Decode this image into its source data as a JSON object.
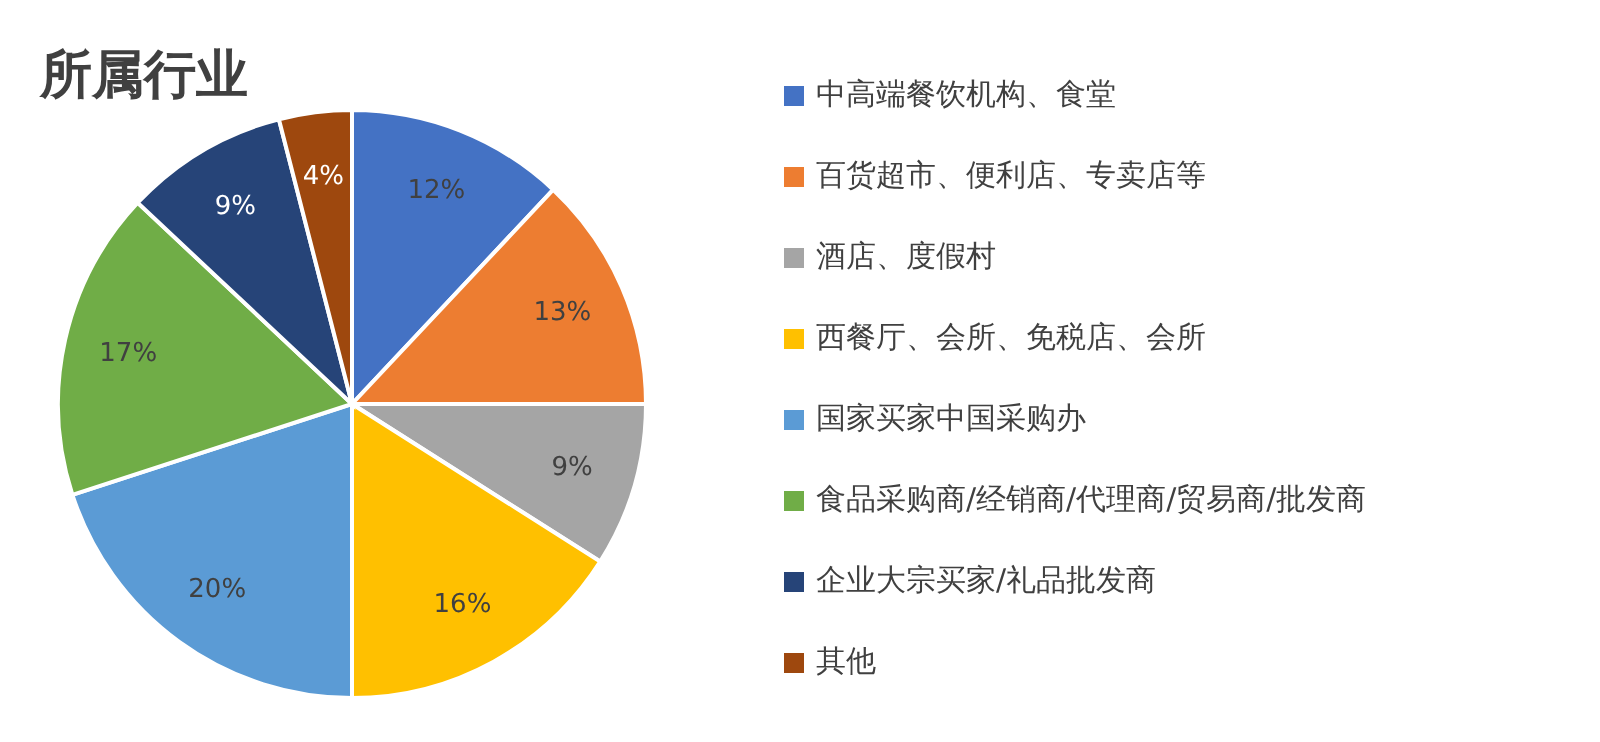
{
  "chart_data": {
    "type": "pie",
    "title": "所属行业",
    "categories": [
      "中高端餐饮机构、食堂",
      "百货超市、便利店、专卖店等",
      "酒店、度假村",
      "西餐厅、会所、免税店、会所",
      "国家买家中国采购办",
      "食品采购商/经销商/代理商/贸易商/批发商",
      "企业大宗买家/礼品批发商",
      "其他"
    ],
    "values": [
      12,
      13,
      9,
      16,
      20,
      17,
      9,
      4
    ],
    "colors": [
      "#4472c4",
      "#ed7d31",
      "#a5a5a5",
      "#ffc000",
      "#5b9bd5",
      "#70ad47",
      "#264478",
      "#9e480e"
    ],
    "value_labels": [
      "12%",
      "13%",
      "9%",
      "16%",
      "20%",
      "17%",
      "9%",
      "4%"
    ],
    "legend": "right"
  }
}
